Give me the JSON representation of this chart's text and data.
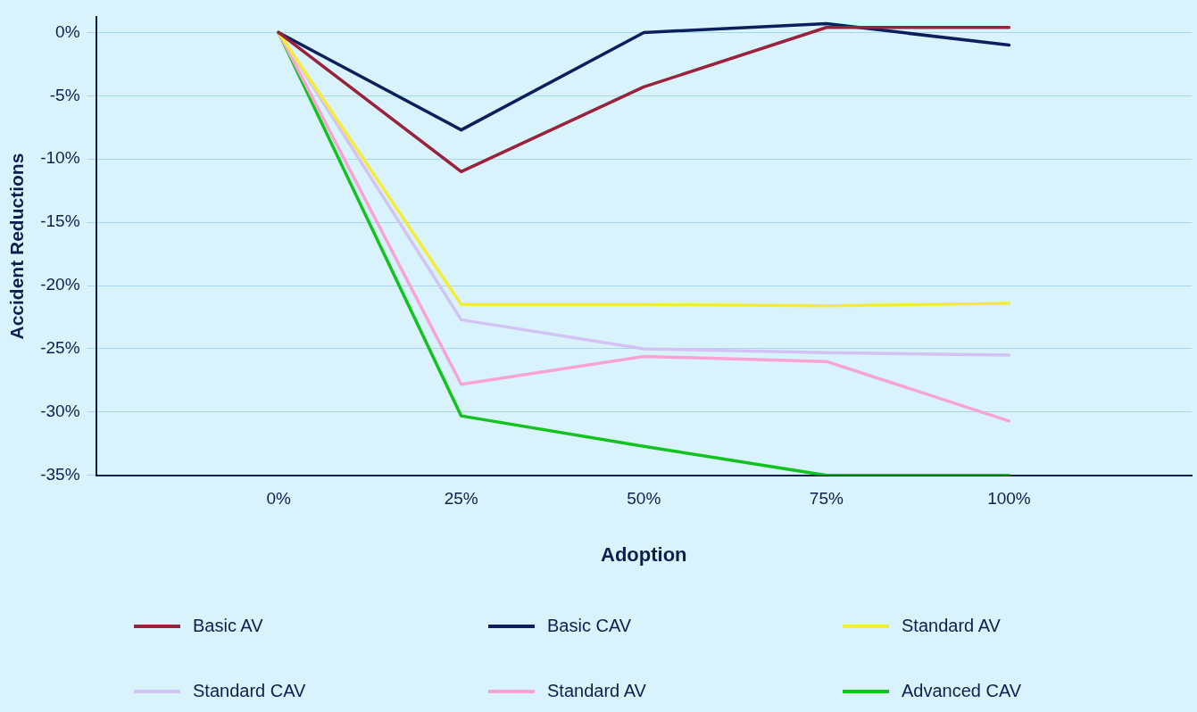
{
  "chart_data": {
    "type": "line",
    "xlabel": "Adoption",
    "ylabel": "Accident Reductions",
    "x": [
      0,
      25,
      50,
      75,
      100
    ],
    "xlim": [
      -25,
      125
    ],
    "xticks": [
      {
        "value": 0,
        "label": "0%"
      },
      {
        "value": 25,
        "label": "25%"
      },
      {
        "value": 50,
        "label": "50%"
      },
      {
        "value": 75,
        "label": "75%"
      },
      {
        "value": 100,
        "label": "100%"
      }
    ],
    "ylim": [
      -35,
      1.2
    ],
    "yticks": [
      {
        "value": 0,
        "label": "0%"
      },
      {
        "value": -5,
        "label": "-5%"
      },
      {
        "value": -10,
        "label": "-10%"
      },
      {
        "value": -15,
        "label": "-15%"
      },
      {
        "value": -20,
        "label": "-20%"
      },
      {
        "value": -25,
        "label": "-25%"
      },
      {
        "value": -30,
        "label": "-30%"
      },
      {
        "value": -35,
        "label": "-35%"
      }
    ],
    "grid": "y",
    "legend": "bottom",
    "marker": "none",
    "line_style": "solid",
    "series": [
      {
        "name": "Basic AV",
        "color": "#98233a",
        "values": [
          0,
          -11.0,
          -4.3,
          0.4,
          0.4
        ]
      },
      {
        "name": "Basic CAV",
        "color": "#0b1f5c",
        "values": [
          0,
          -7.7,
          0,
          0.7,
          -1.0
        ]
      },
      {
        "name": "Standard AV",
        "color": "#f5ec3a",
        "values": [
          0,
          -21.5,
          -21.5,
          -21.6,
          -21.4
        ]
      },
      {
        "name": "Standard CAV",
        "color": "#d3c3f5",
        "values": [
          0,
          -22.7,
          -25.0,
          -25.3,
          -25.5
        ]
      },
      {
        "name": "Standard AV",
        "color": "#f8a3d2",
        "values": [
          0,
          -27.8,
          -25.6,
          -26.0,
          -30.7
        ]
      },
      {
        "name": "Advanced CAV",
        "color": "#12c21e",
        "values": [
          0,
          -30.3,
          -32.7,
          -35,
          -35
        ]
      }
    ]
  }
}
